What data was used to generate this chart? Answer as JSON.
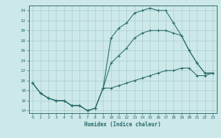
{
  "xlabel": "Humidex (Indice chaleur)",
  "bg_color": "#cce8e8",
  "line_color": "#2a6b6b",
  "grid_color": "#aacccc",
  "xlim": [
    -0.5,
    23.5
  ],
  "ylim": [
    13.5,
    35.0
  ],
  "yticks": [
    14,
    16,
    18,
    20,
    22,
    24,
    26,
    28,
    30,
    32,
    34
  ],
  "xticks": [
    0,
    1,
    2,
    3,
    4,
    5,
    6,
    7,
    8,
    9,
    10,
    11,
    12,
    13,
    14,
    15,
    16,
    17,
    18,
    19,
    20,
    21,
    22,
    23
  ],
  "curve1_x": [
    0,
    1,
    2,
    3,
    4,
    5,
    6,
    7,
    8,
    9,
    10,
    11,
    12,
    13,
    14,
    15,
    16,
    17,
    18,
    19,
    20,
    21,
    22,
    23
  ],
  "curve1_y": [
    19.5,
    17.5,
    16.5,
    16.0,
    16.0,
    15.0,
    15.0,
    14.0,
    14.5,
    18.5,
    28.5,
    30.5,
    31.5,
    33.5,
    34.0,
    34.5,
    34.0,
    34.0,
    31.5,
    29.0,
    26.0,
    23.5,
    21.5,
    21.5
  ],
  "curve2_x": [
    0,
    1,
    2,
    3,
    4,
    5,
    6,
    7,
    8,
    9,
    10,
    11,
    12,
    13,
    14,
    15,
    16,
    17,
    18,
    19,
    20,
    21,
    22,
    23
  ],
  "curve2_y": [
    19.5,
    17.5,
    16.5,
    16.0,
    16.0,
    15.0,
    15.0,
    14.0,
    14.5,
    18.5,
    23.5,
    25.0,
    26.5,
    28.5,
    29.5,
    30.0,
    30.0,
    30.0,
    29.5,
    29.0,
    26.0,
    23.5,
    21.5,
    21.5
  ],
  "curve3_x": [
    0,
    1,
    2,
    3,
    4,
    5,
    6,
    7,
    8,
    9,
    10,
    11,
    12,
    13,
    14,
    15,
    16,
    17,
    18,
    19,
    20,
    21,
    22,
    23
  ],
  "curve3_y": [
    19.5,
    17.5,
    16.5,
    16.0,
    16.0,
    15.0,
    15.0,
    14.0,
    14.5,
    18.5,
    18.5,
    19.0,
    19.5,
    20.0,
    20.5,
    21.0,
    21.5,
    22.0,
    22.0,
    22.5,
    22.5,
    21.0,
    21.0,
    21.5
  ]
}
